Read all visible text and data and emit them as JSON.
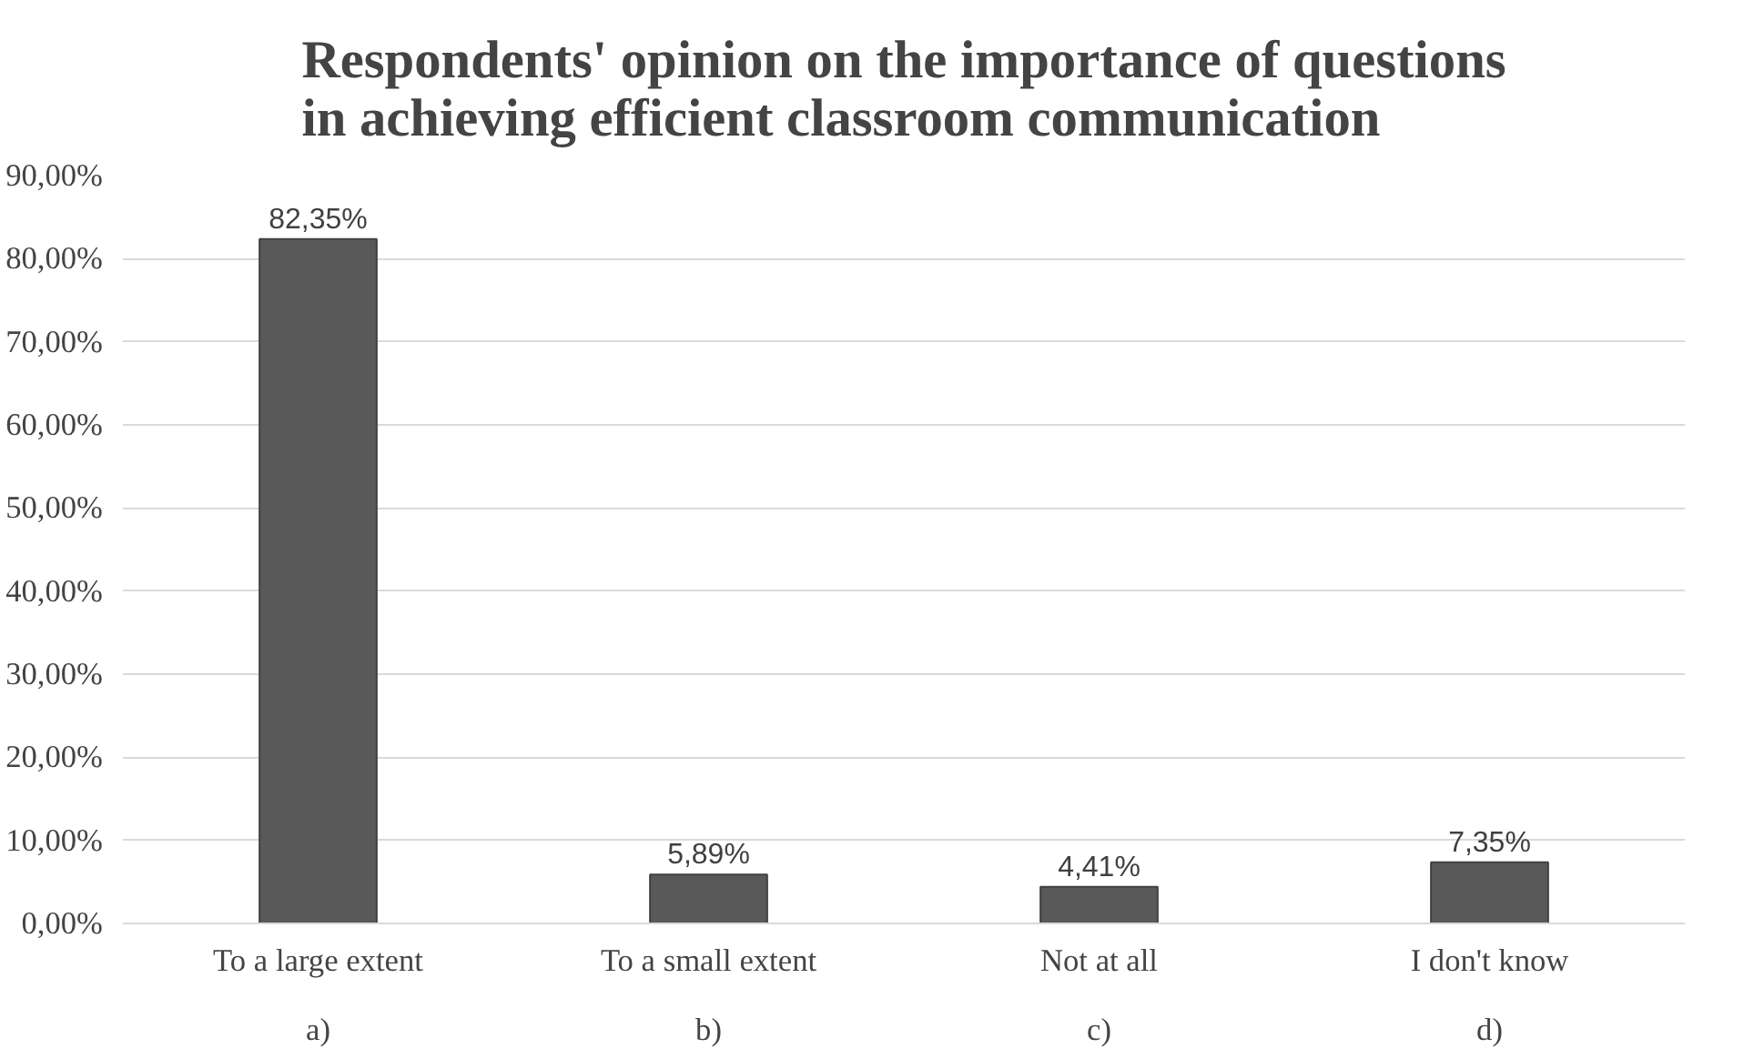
{
  "chart_data": {
    "type": "bar",
    "title": "Respondents' opinion on the importance of questions\nin achieving efficient classroom communication",
    "categories": [
      "To a large extent",
      "To a small extent",
      "Not at all",
      "I don't know"
    ],
    "values": [
      82.35,
      5.89,
      4.41,
      7.35
    ],
    "value_labels": [
      "82,35%",
      "5,89%",
      "4,41%",
      "7,35%"
    ],
    "color": "#595959",
    "ylim": [
      0,
      90
    ],
    "yticks": [
      {
        "value": 0,
        "label": "0,00%"
      },
      {
        "value": 10,
        "label": "10,00%"
      },
      {
        "value": 20,
        "label": "20,00%"
      },
      {
        "value": 30,
        "label": "30,00%"
      },
      {
        "value": 40,
        "label": "40,00%"
      },
      {
        "value": 50,
        "label": "50,00%"
      },
      {
        "value": 60,
        "label": "60,00%"
      },
      {
        "value": 70,
        "label": "70,00%"
      },
      {
        "value": 80,
        "label": "80,00%"
      },
      {
        "value": 90,
        "label": "90,00%"
      }
    ],
    "grid": "y",
    "annotations": [
      "a)",
      "b)",
      "c)",
      "d)"
    ]
  }
}
